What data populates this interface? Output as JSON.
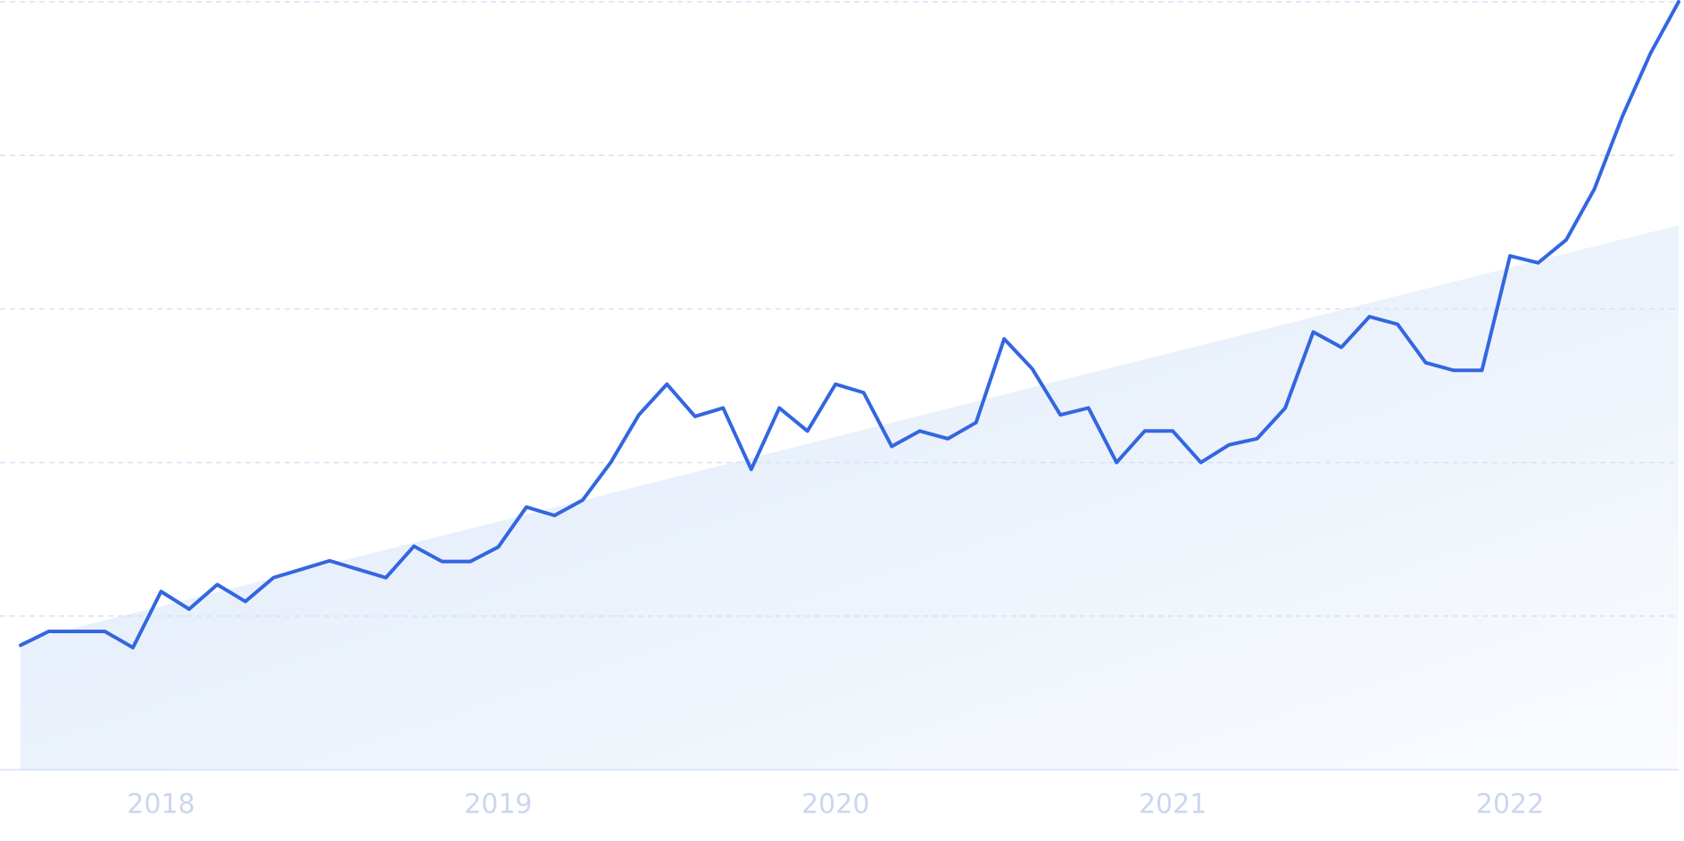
{
  "chart_data": {
    "type": "line",
    "categories": [
      null,
      null,
      null,
      null,
      null,
      "2018",
      null,
      null,
      null,
      null,
      null,
      null,
      null,
      null,
      null,
      null,
      null,
      "2019",
      null,
      null,
      null,
      null,
      null,
      null,
      null,
      null,
      null,
      null,
      null,
      "2020",
      null,
      null,
      null,
      null,
      null,
      null,
      null,
      null,
      null,
      null,
      null,
      "2021",
      null,
      null,
      null,
      null,
      null,
      null,
      null,
      null,
      null,
      null,
      null,
      "2022",
      null,
      null,
      null,
      null,
      null,
      null
    ],
    "series": [
      {
        "color": "#3366e0",
        "values": [
          16.2,
          18.0,
          18.0,
          18.0,
          15.9,
          23.2,
          20.9,
          24.1,
          21.9,
          25.0,
          26.1,
          27.2,
          26.1,
          25.0,
          29.1,
          27.1,
          27.1,
          29.0,
          34.2,
          33.1,
          35.1,
          40.0,
          46.2,
          50.2,
          46.0,
          47.1,
          39.1,
          47.1,
          44.1,
          50.2,
          49.1,
          42.1,
          44.1,
          43.1,
          45.2,
          56.1,
          52.2,
          46.2,
          47.1,
          40.0,
          44.1,
          44.1,
          40.0,
          42.3,
          43.1,
          47.1,
          57.0,
          55.0,
          59.0,
          58.0,
          53.0,
          52.0,
          52.0,
          66.9,
          66.0,
          69.0,
          75.6,
          85.1,
          93.3,
          100
        ]
      }
    ],
    "trend": {
      "color": "#dce8f9",
      "values": [
        16.7,
        70.9
      ]
    },
    "ylim": [
      0,
      100
    ],
    "yticks": [
      0,
      20,
      40,
      60,
      80,
      100
    ],
    "grid": true
  }
}
